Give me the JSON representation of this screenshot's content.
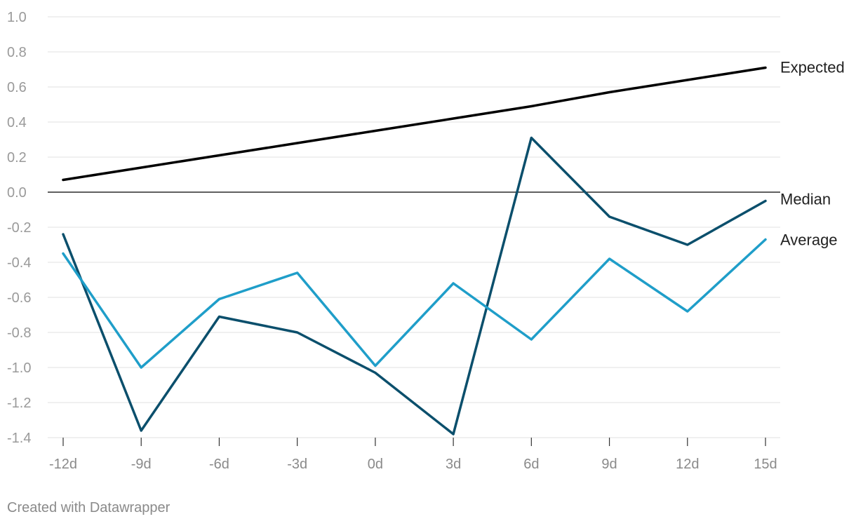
{
  "credit": "Created with Datawrapper",
  "chart_data": {
    "type": "line",
    "title": "",
    "xlabel": "",
    "ylabel": "",
    "categories": [
      "-12d",
      "-9d",
      "-6d",
      "-3d",
      "0d",
      "3d",
      "6d",
      "9d",
      "12d",
      "15d"
    ],
    "ylim": [
      -1.4,
      1.0
    ],
    "yticks": [
      "1.0",
      "0.8",
      "0.6",
      "0.4",
      "0.2",
      "0.0",
      "-0.2",
      "-0.4",
      "-0.6",
      "-0.8",
      "-1.0",
      "-1.2",
      "-1.4"
    ],
    "grid": true,
    "zero_line": true,
    "series": [
      {
        "name": "Expected",
        "color": "#000000",
        "values": [
          0.07,
          0.14,
          0.21,
          0.28,
          0.35,
          0.42,
          0.49,
          0.57,
          0.64,
          0.71
        ]
      },
      {
        "name": "Median",
        "color": "#0b4f6c",
        "values": [
          -0.24,
          -1.36,
          -0.71,
          -0.8,
          -1.03,
          -1.38,
          0.31,
          -0.14,
          -0.3,
          -0.05
        ]
      },
      {
        "name": "Average",
        "color": "#1f9ec9",
        "values": [
          -0.35,
          -1.0,
          -0.61,
          -0.46,
          -0.99,
          -0.52,
          -0.84,
          -0.38,
          -0.68,
          -0.27
        ]
      }
    ]
  }
}
